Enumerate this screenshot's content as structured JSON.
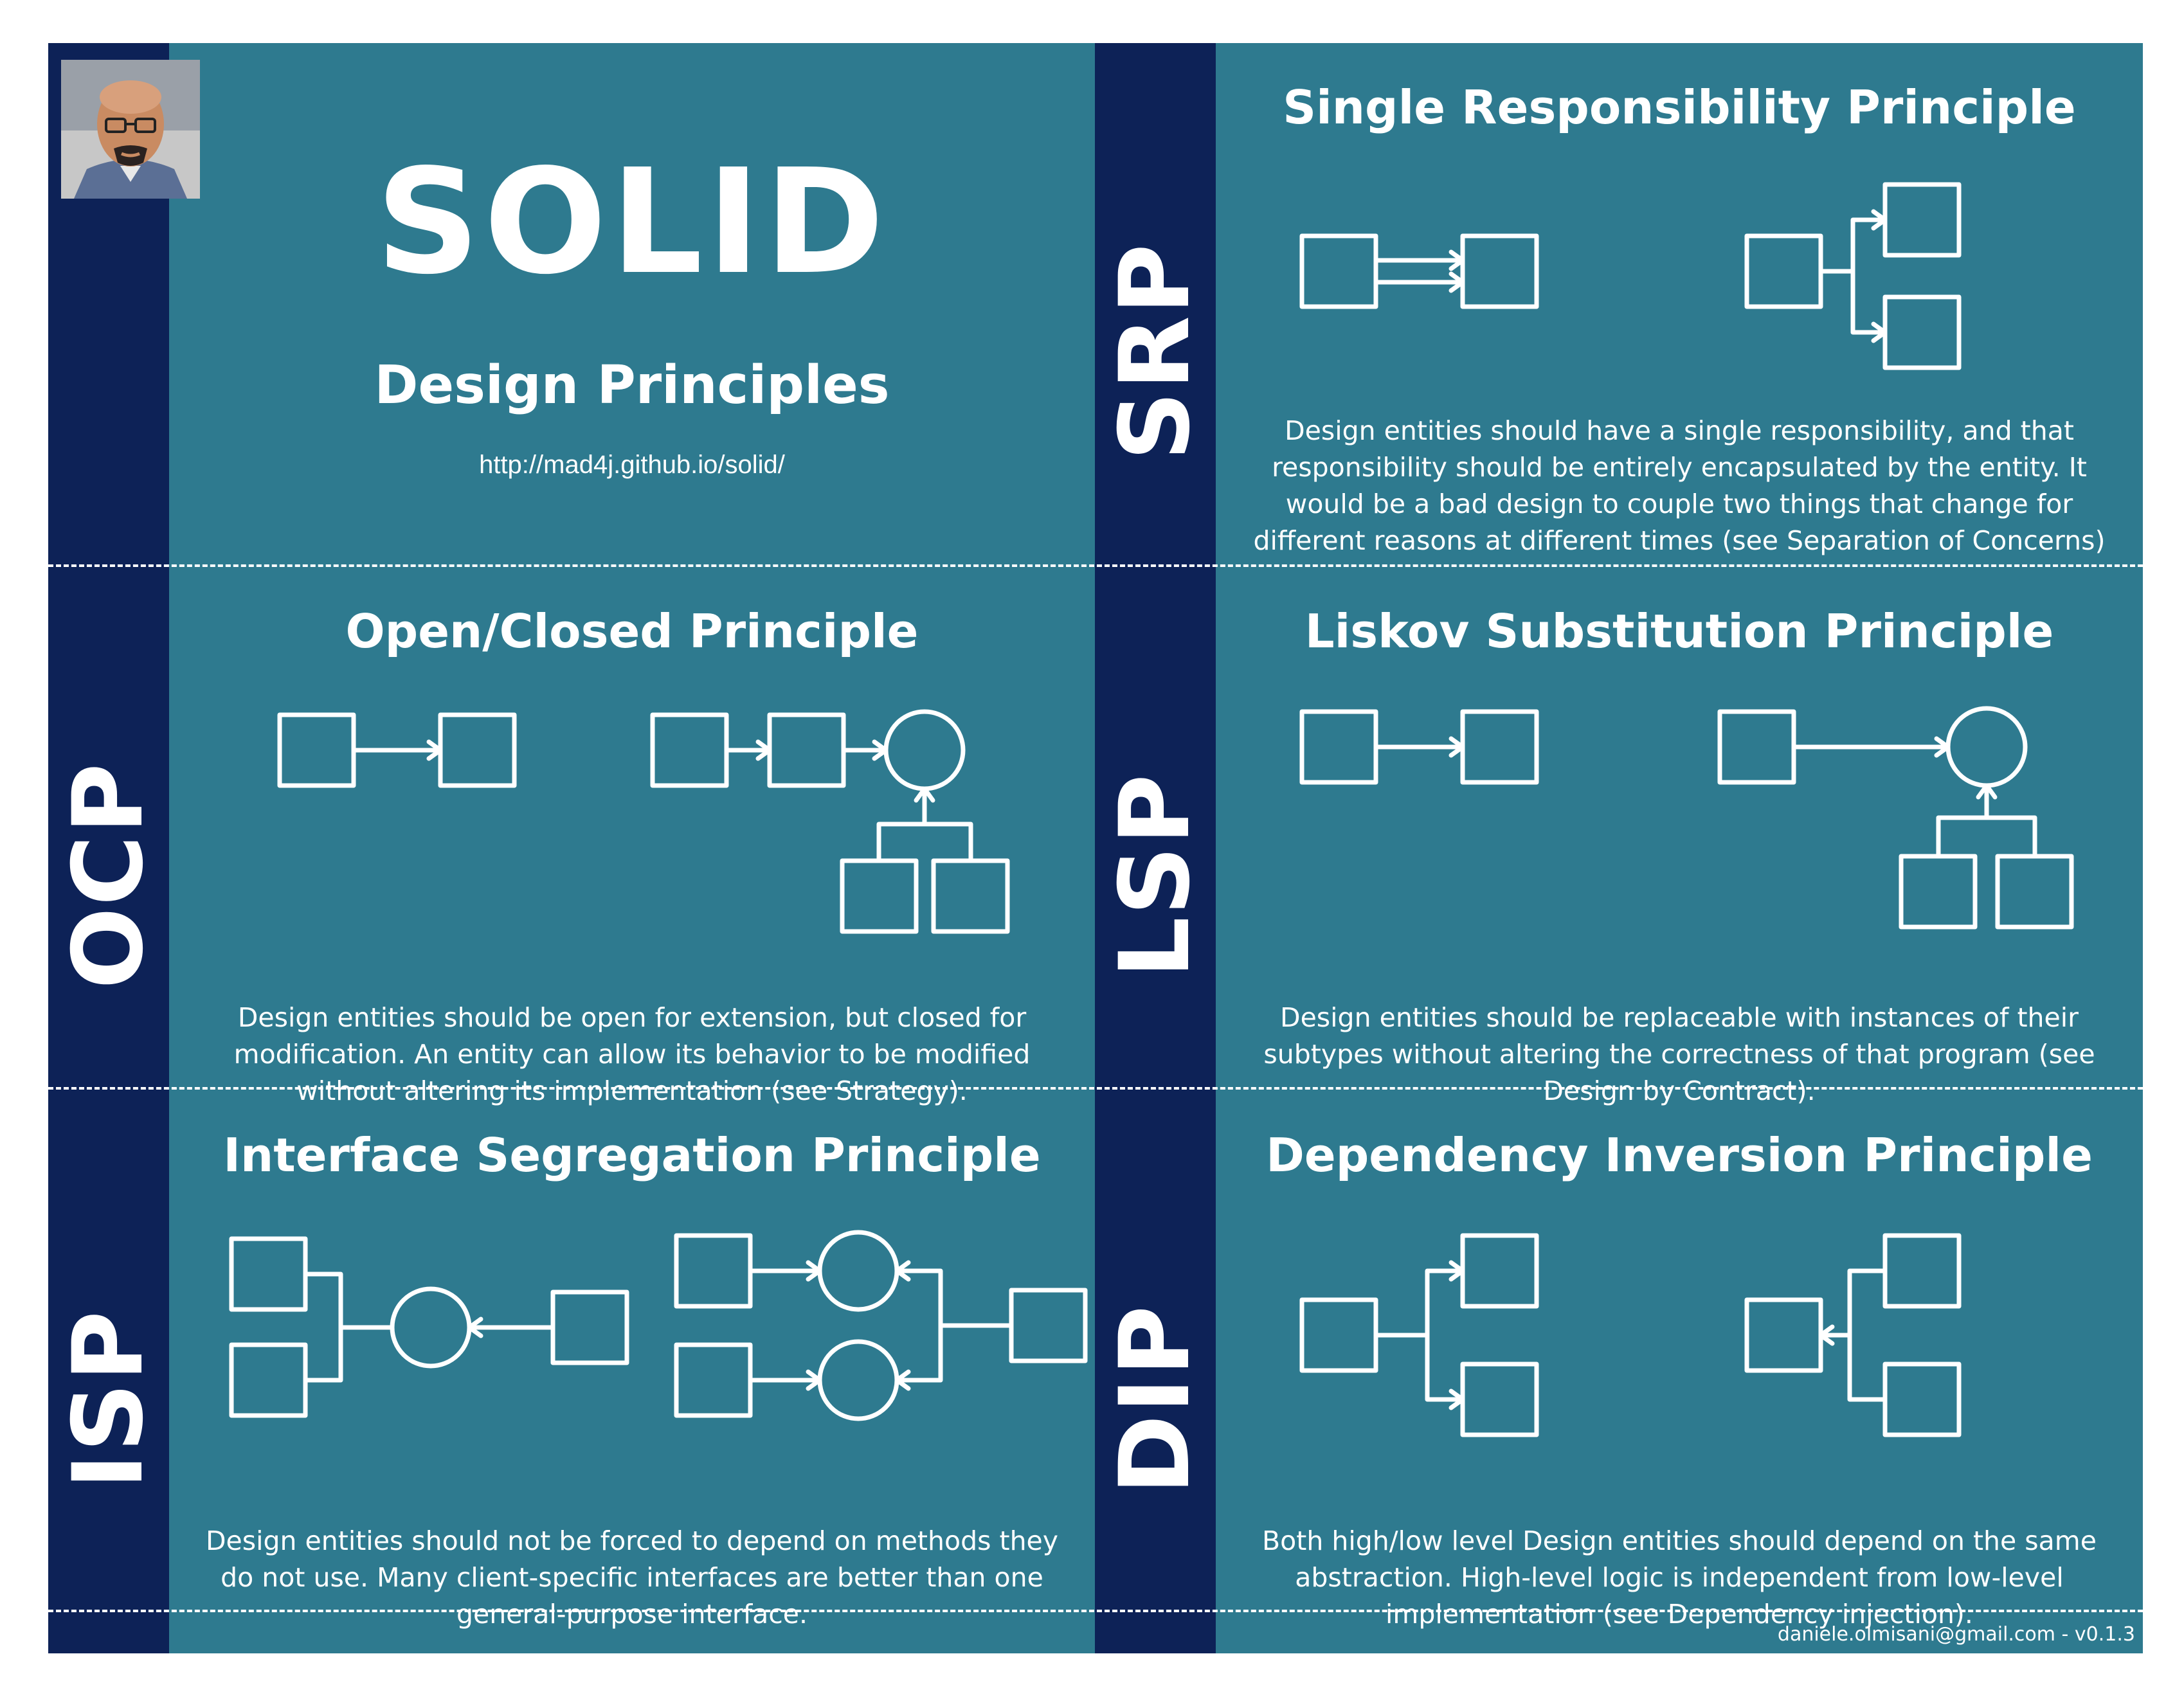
{
  "header": {
    "title": "SOLID",
    "subtitle": "Design Principles",
    "url": "http://mad4j.github.io/solid/",
    "avatar_icon": "author-avatar"
  },
  "colors": {
    "panel": "#2e7a8f",
    "stripe": "#0d2257",
    "ink": "#ffffff"
  },
  "principles": {
    "srp": {
      "abbr": "SRP",
      "title": "Single Responsibility Principle",
      "description": "Design entities should have a single responsibility, and that responsibility should be entirely encapsulated by the entity. It would be a bad design to couple two things that change for different reasons at different times (see Separation of Concerns)"
    },
    "ocp": {
      "abbr": "OCP",
      "title": "Open/Closed Principle",
      "description": "Design entities should be open for extension, but closed for modification. An entity can allow its behavior to be modified without altering its implementation (see Strategy)."
    },
    "lsp": {
      "abbr": "LSP",
      "title": "Liskov Substitution Principle",
      "description": "Design entities should be replaceable with instances of their subtypes without altering the correctness of that program (see Design by Contract)."
    },
    "isp": {
      "abbr": "ISP",
      "title": "Interface Segregation Principle",
      "description": "Design entities should not be forced to depend on methods they do not use. Many client-specific interfaces are better than one general-purpose interface."
    },
    "dip": {
      "abbr": "DIP",
      "title": "Dependency Inversion Principle",
      "description": "Both high/low level Design entities should depend on the same abstraction. High-level logic is independent from low-level implementation (see Dependency injection)."
    }
  },
  "footer": "daniele.olmisani@gmail.com - v0.1.3"
}
